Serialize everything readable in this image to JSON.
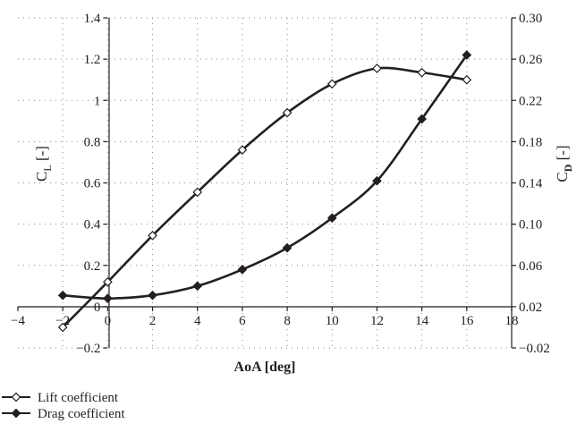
{
  "chart_data": {
    "type": "line",
    "xlabel": "AoA [deg]",
    "ylabel_left": {
      "main": "C",
      "sub": "L",
      "suffix": " [-]"
    },
    "ylabel_right": {
      "main": "C",
      "sub": "D",
      "suffix": " [-]"
    },
    "xlim": [
      -4,
      18
    ],
    "ylim_left": [
      -0.2,
      1.4
    ],
    "ylim_right": [
      -0.02,
      0.3
    ],
    "x_ticks": [
      "−4",
      "−2",
      "0",
      "2",
      "4",
      "6",
      "8",
      "10",
      "12",
      "14",
      "16",
      "18"
    ],
    "y_left_ticks": [
      "−0.2",
      "0",
      "0.2",
      "0.4",
      "0.6",
      "0.8",
      "1",
      "1.2",
      "1.4"
    ],
    "y_right_ticks": [
      "−0.02",
      "0.02",
      "0.06",
      "0.10",
      "0.14",
      "0.18",
      "0.22",
      "0.26",
      "0.30"
    ],
    "grid": true,
    "legend_position": "bottom-left",
    "series": [
      {
        "name": "Lift coefficient",
        "axis": "left",
        "marker": "open-diamond",
        "x": [
          -2,
          0,
          2,
          4,
          6,
          8,
          10,
          12,
          14,
          16
        ],
        "values": [
          -0.1,
          0.12,
          0.345,
          0.555,
          0.76,
          0.94,
          1.08,
          1.155,
          1.135,
          1.1
        ]
      },
      {
        "name": "Drag coefficient",
        "axis": "right",
        "marker": "filled-diamond",
        "x": [
          -2,
          0,
          2,
          4,
          6,
          8,
          10,
          12,
          14,
          16
        ],
        "values": [
          0.031,
          0.028,
          0.031,
          0.04,
          0.056,
          0.077,
          0.106,
          0.142,
          0.202,
          0.264
        ]
      }
    ]
  }
}
